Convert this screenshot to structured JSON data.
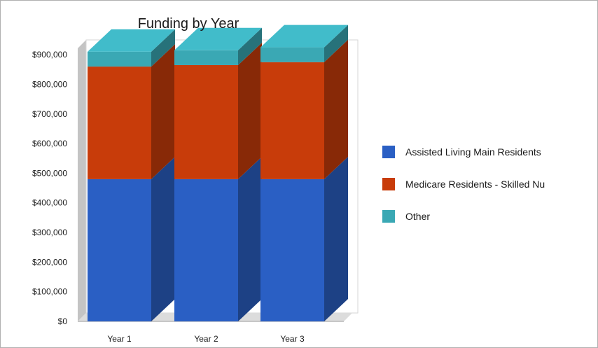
{
  "chart_data": {
    "type": "bar",
    "stacked": true,
    "three_d": true,
    "title": "Funding by Year",
    "categories": [
      "Year 1",
      "Year 2",
      "Year 3"
    ],
    "series": [
      {
        "name": "Assisted Living Main Residents",
        "color": "#2a5fc4",
        "values": [
          480000,
          480000,
          480000
        ]
      },
      {
        "name": "Medicare Residents - Skilled Nu",
        "color": "#c83c0a",
        "values": [
          380000,
          385000,
          395000
        ]
      },
      {
        "name": "Other",
        "color": "#3aa8b4",
        "values": [
          50000,
          50000,
          50000
        ]
      }
    ],
    "yticks": [
      "$0",
      "$100,000",
      "$200,000",
      "$300,000",
      "$400,000",
      "$500,000",
      "$600,000",
      "$700,000",
      "$800,000",
      "$900,000"
    ],
    "ylim": [
      0,
      950000
    ],
    "xlabel": "",
    "ylabel": "",
    "grid": false,
    "legend_position": "right"
  }
}
